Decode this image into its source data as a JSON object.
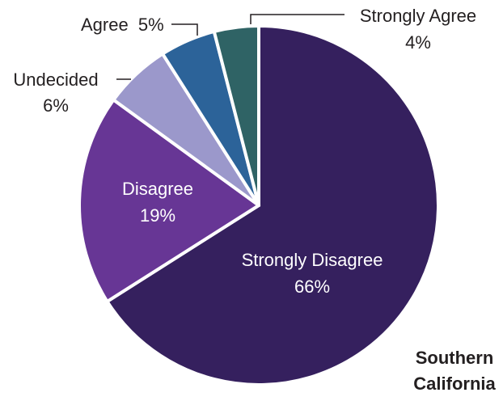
{
  "chart_data": {
    "type": "pie",
    "title": "",
    "region_label": [
      "Southern",
      "California"
    ],
    "start_angle": "top, clockwise",
    "slices": [
      {
        "name": "Strongly Disagree",
        "value": 66,
        "label": "66%",
        "color": "#35205e",
        "label_position": "inside"
      },
      {
        "name": "Disagree",
        "value": 19,
        "label": "19%",
        "color": "#673695",
        "label_position": "inside"
      },
      {
        "name": "Undecided",
        "value": 6,
        "label": "6%",
        "color": "#9b98cb",
        "label_position": "outside"
      },
      {
        "name": "Agree",
        "value": 5,
        "label": "5%",
        "color": "#2c6399",
        "label_position": "outside"
      },
      {
        "name": "Strongly Agree",
        "value": 4,
        "label": "4%",
        "color": "#2f6365",
        "label_position": "outside"
      }
    ]
  }
}
